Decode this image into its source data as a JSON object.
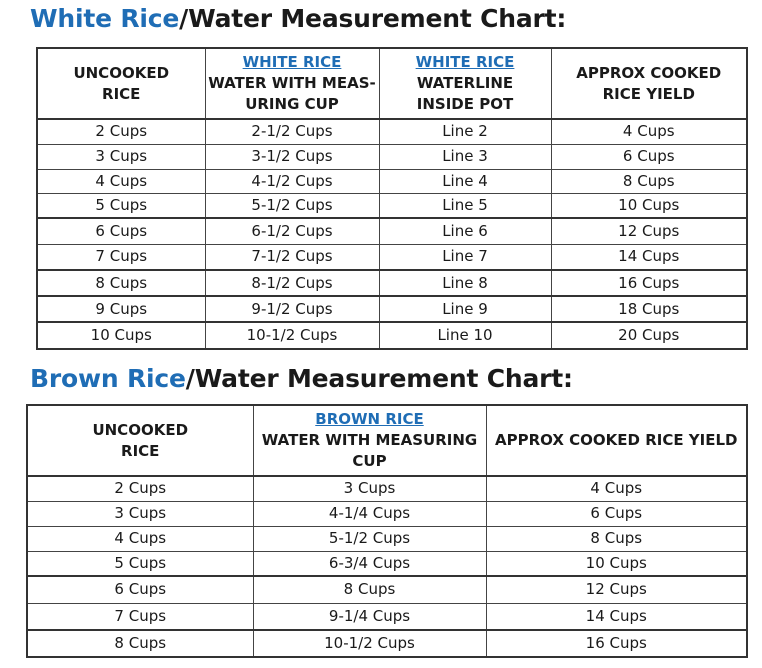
{
  "white": {
    "title_accent": "White Rice",
    "title_rest": "/Water Measurement Chart:",
    "headers": [
      {
        "link": "",
        "lines": [
          "UNCOOKED",
          "RICE"
        ]
      },
      {
        "link": "WHITE RICE",
        "lines": [
          "WATER WITH MEAS-",
          "URING CUP"
        ]
      },
      {
        "link": "WHITE RICE",
        "lines": [
          "WATERLINE",
          "INSIDE POT"
        ]
      },
      {
        "link": "",
        "lines": [
          "APPROX COOKED",
          "RICE YIELD"
        ]
      }
    ],
    "rows": [
      [
        "2 Cups",
        "2-1/2 Cups",
        "Line 2",
        "4 Cups"
      ],
      [
        "3 Cups",
        "3-1/2 Cups",
        "Line 3",
        "6 Cups"
      ],
      [
        "4 Cups",
        "4-1/2 Cups",
        "Line 4",
        "8 Cups"
      ],
      [
        "5 Cups",
        "5-1/2 Cups",
        "Line 5",
        "10 Cups"
      ],
      [
        "6 Cups",
        "6-1/2 Cups",
        "Line 6",
        "12 Cups"
      ],
      [
        "7 Cups",
        "7-1/2 Cups",
        "Line 7",
        "14 Cups"
      ],
      [
        "8 Cups",
        "8-1/2 Cups",
        "Line 8",
        "16 Cups"
      ],
      [
        "9 Cups",
        "9-1/2 Cups",
        "Line 9",
        "18 Cups"
      ],
      [
        "10 Cups",
        "10-1/2 Cups",
        "Line 10",
        "20 Cups"
      ]
    ]
  },
  "brown": {
    "title_accent": "Brown Rice",
    "title_rest": "/Water Measurement Chart:",
    "headers": [
      {
        "link": "",
        "lines": [
          "UNCOOKED",
          "RICE"
        ]
      },
      {
        "link": "BROWN RICE",
        "lines": [
          "WATER WITH MEASURING",
          "CUP"
        ]
      },
      {
        "link": "",
        "lines": [
          "APPROX COOKED RICE YIELD"
        ]
      }
    ],
    "rows": [
      [
        "2 Cups",
        "3 Cups",
        "4 Cups"
      ],
      [
        "3 Cups",
        "4-1/4 Cups",
        "6 Cups"
      ],
      [
        "4 Cups",
        "5-1/2 Cups",
        "8 Cups"
      ],
      [
        "5 Cups",
        "6-3/4 Cups",
        "10 Cups"
      ],
      [
        "6 Cups",
        "8 Cups",
        "12 Cups"
      ],
      [
        "7 Cups",
        "9-1/4 Cups",
        "14 Cups"
      ],
      [
        "8 Cups",
        "10-1/2 Cups",
        "16 Cups"
      ]
    ]
  },
  "colors": {
    "accent": "#1f6db5",
    "text": "#1a1a1a",
    "border": "#444444"
  }
}
